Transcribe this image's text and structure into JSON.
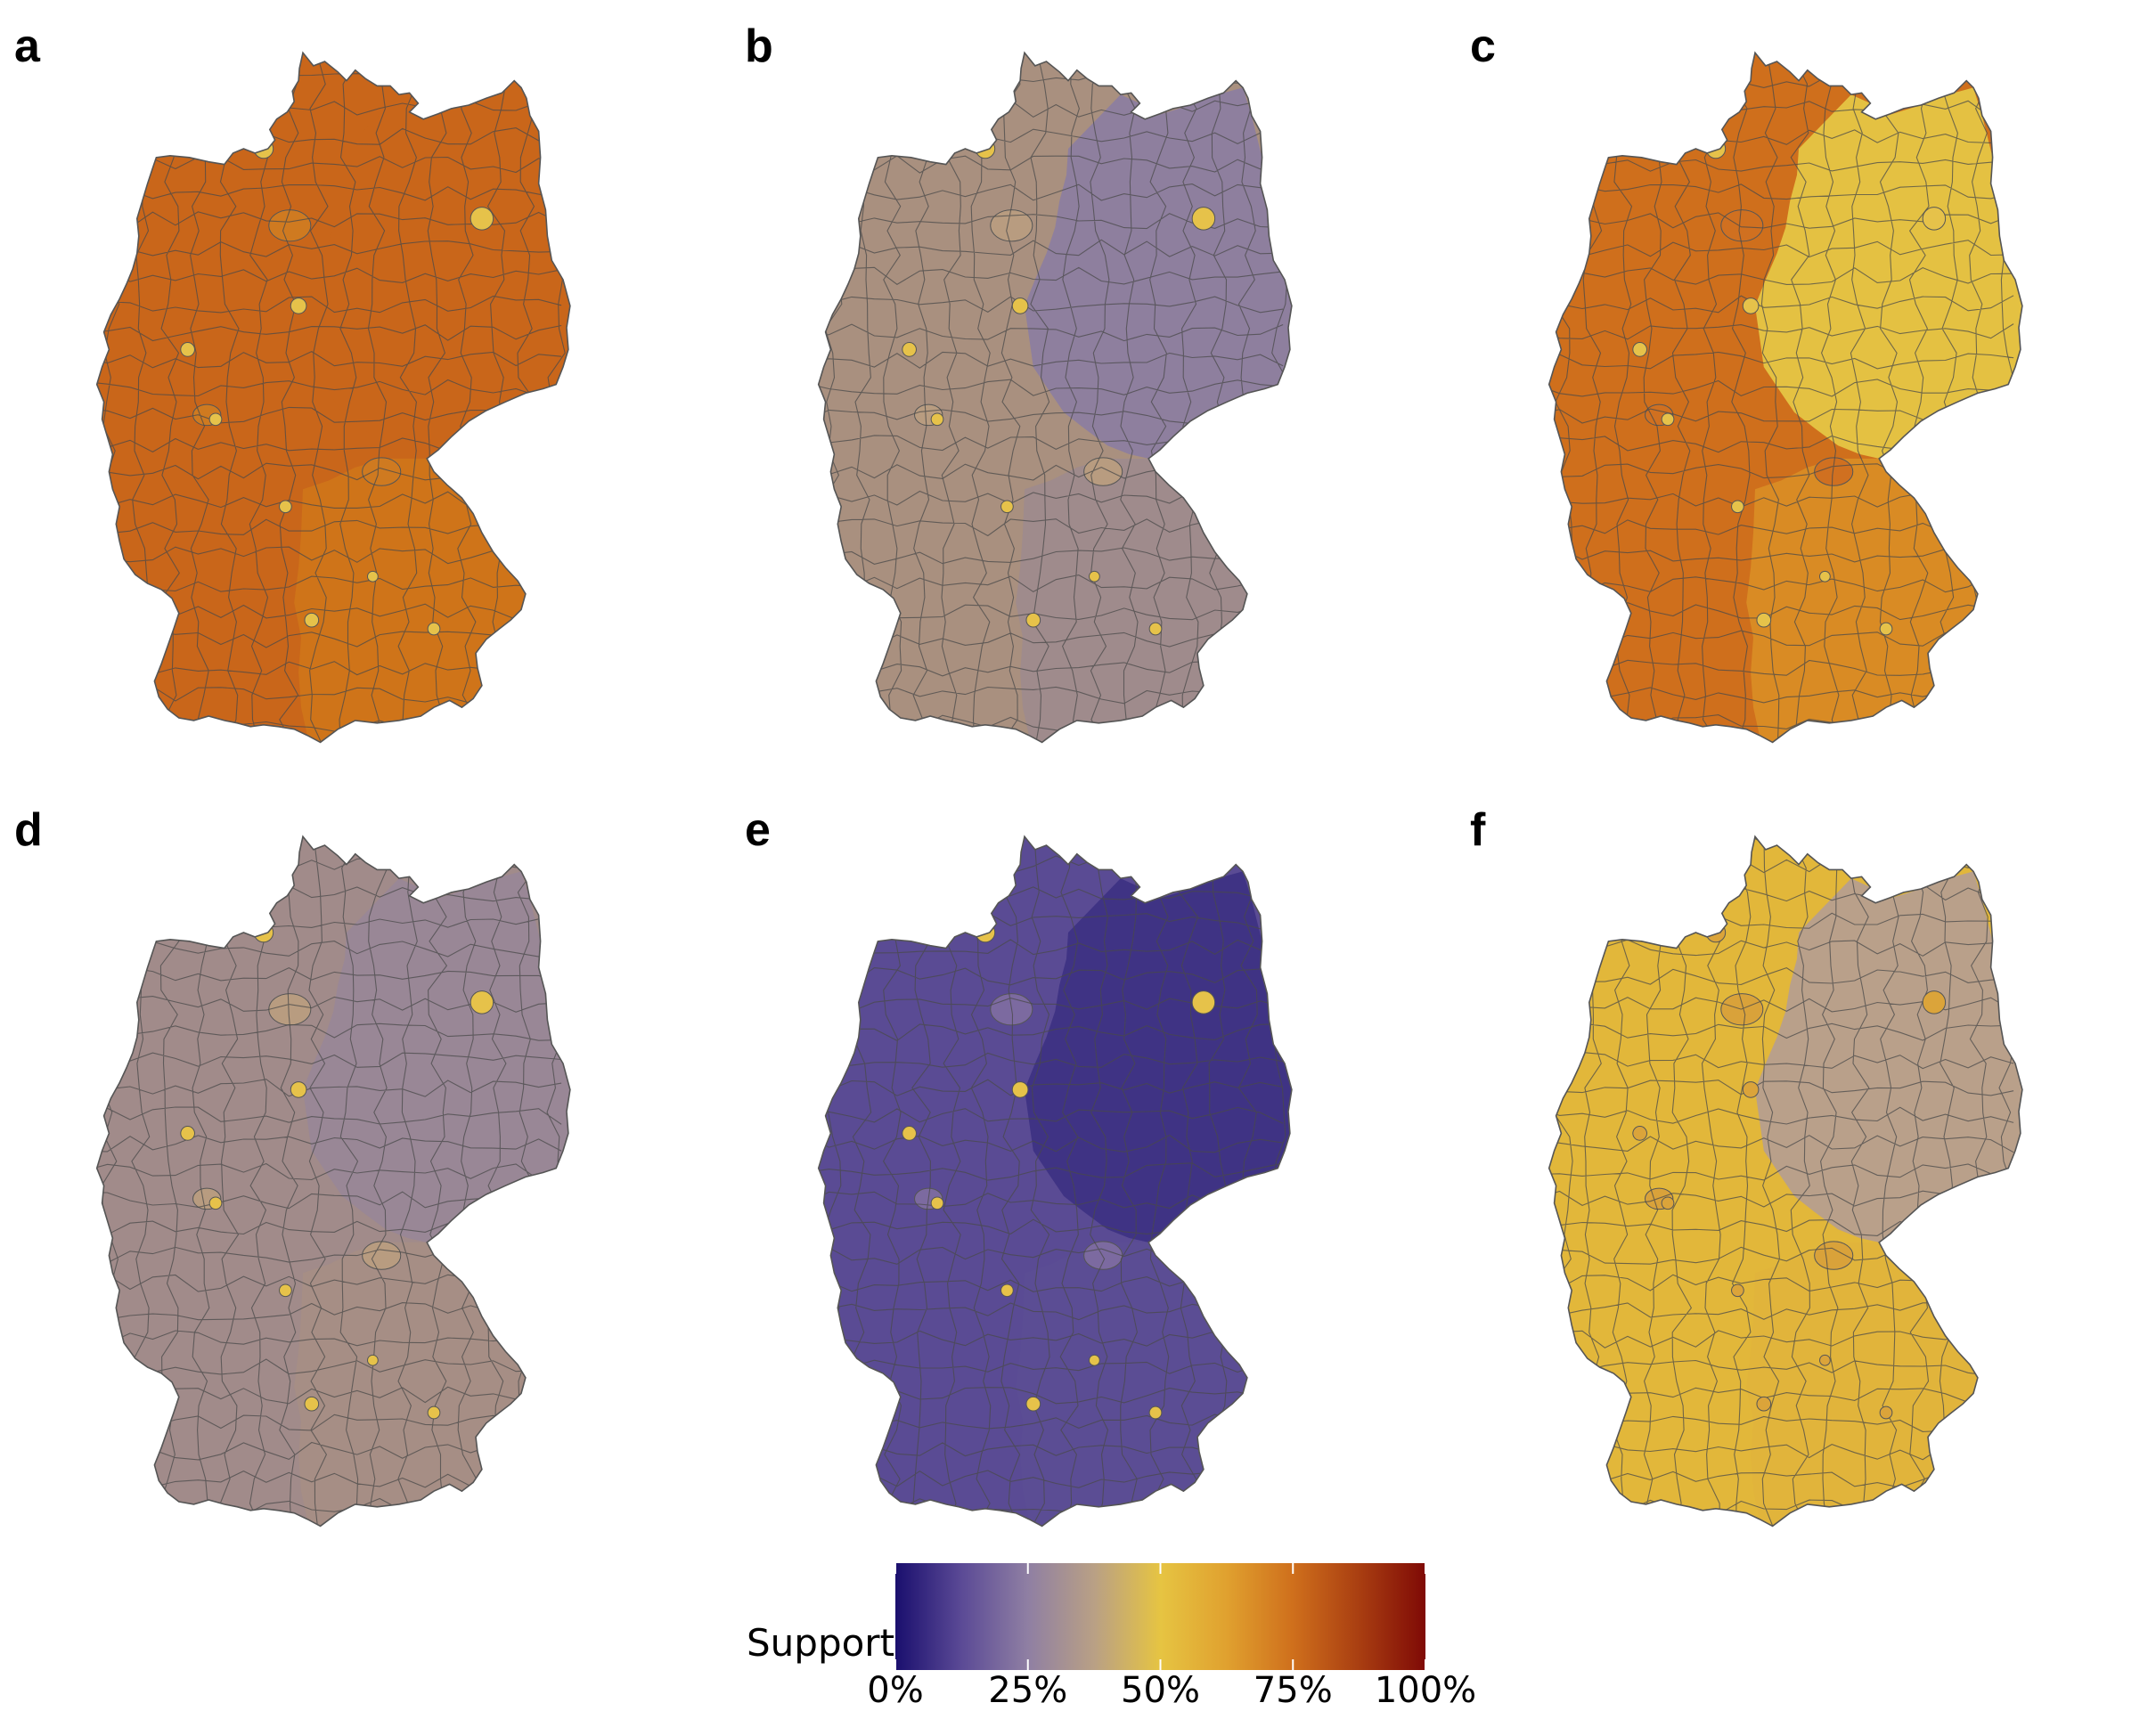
{
  "panels": [
    {
      "letter": "a",
      "fill": "#c9661a",
      "east_fill": "#c9661a",
      "south_fill": "#cf7419",
      "city_fill": "#e6c24a",
      "region_fill": "#cf7a20"
    },
    {
      "letter": "b",
      "fill": "#a9907f",
      "east_fill": "#8e7f9e",
      "south_fill": "#9f8b8c",
      "city_fill": "#e6c24a",
      "region_fill": "#b89c80"
    },
    {
      "letter": "c",
      "fill": "#cf6f1c",
      "east_fill": "#e4c142",
      "south_fill": "#d98b24",
      "city_fill": "#e6c24a",
      "region_fill": "#d07020"
    },
    {
      "letter": "d",
      "fill": "#a18b8a",
      "east_fill": "#998796",
      "south_fill": "#a68e85",
      "city_fill": "#e6c24a",
      "region_fill": "#b89c80"
    },
    {
      "letter": "e",
      "fill": "#5a4b94",
      "east_fill": "#3f3384",
      "south_fill": "#5b4d94",
      "city_fill": "#e6c24a",
      "region_fill": "#7c6aa0"
    },
    {
      "letter": "f",
      "fill": "#e2b73a",
      "east_fill": "#b9a08a",
      "south_fill": "#e1b43b",
      "city_fill": "#dba43a",
      "region_fill": "#d9a23a"
    }
  ],
  "legend": {
    "title": "Support",
    "tick_labels": [
      "0%",
      "25%",
      "50%",
      "75%",
      "100%"
    ],
    "tick_values": [
      0,
      0.25,
      0.5,
      0.75,
      1.0
    ],
    "colors": [
      "#1a0f6e",
      "#5b4a96",
      "#8f7fa3",
      "#b9a085",
      "#e6c442",
      "#e0a12f",
      "#cf6f1c",
      "#a93e11",
      "#7f0a06"
    ]
  }
}
